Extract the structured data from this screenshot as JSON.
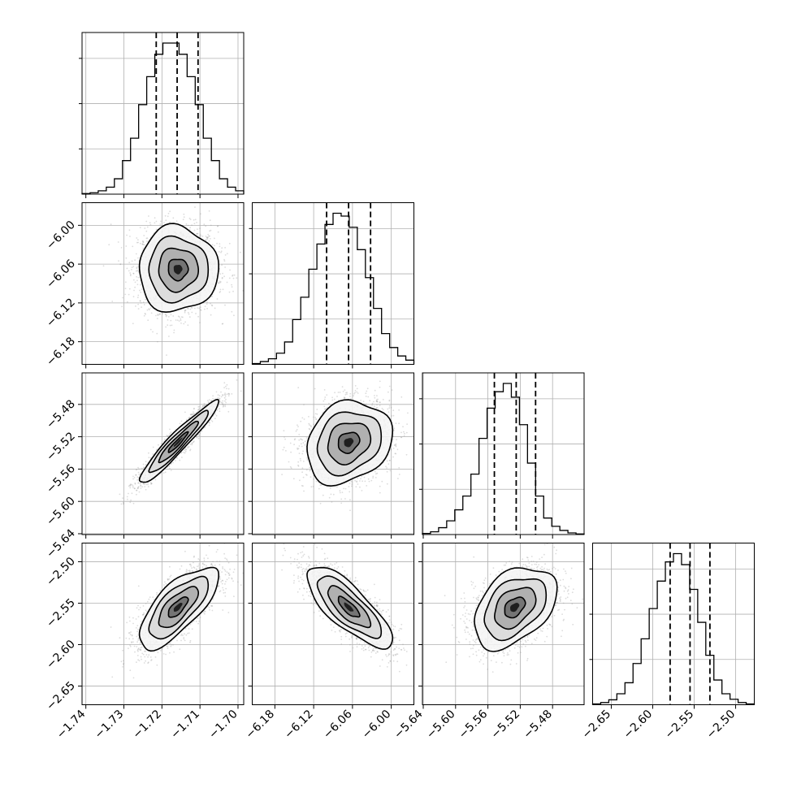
{
  "chart_data": {
    "type": "corner",
    "parameters": [
      {
        "ticks": [
          "−1.74",
          "−1.73",
          "−1.72",
          "−1.71",
          "−1.70"
        ],
        "tick_values": [
          -1.74,
          -1.73,
          -1.72,
          -1.71,
          -1.7
        ],
        "range": [
          -1.741,
          -1.6985
        ],
        "hist": [
          0.2,
          0.5,
          1.2,
          2.5,
          5.5,
          12,
          20,
          32,
          42,
          50,
          54,
          54,
          50,
          42,
          32,
          20,
          12,
          5.5,
          2.5,
          1.2
        ],
        "quantiles": [
          -1.7215,
          -1.716,
          -1.7105
        ]
      },
      {
        "ticks": [
          "−6.18",
          "−6.12",
          "−6.06",
          "−6.00"
        ],
        "tick_values": [
          -6.18,
          -6.12,
          -6.06,
          -6.0
        ],
        "range": [
          -6.215,
          -5.965
        ],
        "hist": [
          0.3,
          1,
          2,
          4,
          8,
          16,
          24,
          34,
          43,
          50,
          54,
          53,
          49,
          41,
          31,
          20,
          11,
          6,
          3,
          1.5
        ],
        "quantiles": [
          -6.1,
          -6.066,
          -6.032
        ]
      },
      {
        "ticks": [
          "−5.64",
          "−5.60",
          "−5.56",
          "−5.52",
          "−5.48"
        ],
        "tick_values": [
          -5.64,
          -5.6,
          -5.56,
          -5.52,
          -5.48
        ],
        "range": [
          -5.641,
          -5.441
        ],
        "hist": [
          0.4,
          1,
          2.5,
          5,
          9,
          14,
          22,
          35,
          46,
          52,
          55,
          50,
          40,
          26,
          14,
          6,
          3,
          1.5,
          0.6,
          0.2
        ],
        "quantiles": [
          -5.552,
          -5.525,
          -5.501
        ]
      },
      {
        "ticks": [
          "−2.65",
          "−2.60",
          "−2.55",
          "−2.50"
        ],
        "tick_values": [
          -2.65,
          -2.6,
          -2.55,
          -2.5
        ],
        "range": [
          -2.6725,
          -2.4775
        ],
        "hist": [
          0.3,
          0.8,
          1.8,
          4,
          8,
          15,
          24,
          35,
          45,
          52,
          55,
          51,
          42,
          30,
          18,
          9,
          4,
          2,
          0.8,
          0.3
        ],
        "quantiles": [
          -2.579,
          -2.555,
          -2.531
        ]
      }
    ],
    "pairs": [
      {
        "row": 1,
        "col": 0,
        "mean": [
          -1.7158,
          -6.068
        ],
        "sd": [
          0.0052,
          0.033
        ],
        "corr": 0.0
      },
      {
        "row": 2,
        "col": 0,
        "mean": [
          -1.7158,
          -5.527
        ],
        "sd": [
          0.0052,
          0.0255
        ],
        "corr": 0.95
      },
      {
        "row": 2,
        "col": 1,
        "mean": [
          -6.066,
          -5.527
        ],
        "sd": [
          0.033,
          0.0255
        ],
        "corr": 0.2
      },
      {
        "row": 3,
        "col": 0,
        "mean": [
          -1.7158,
          -2.555
        ],
        "sd": [
          0.0052,
          0.0245
        ],
        "corr": 0.72
      },
      {
        "row": 3,
        "col": 1,
        "mean": [
          -6.066,
          -2.555
        ],
        "sd": [
          0.033,
          0.0245
        ],
        "corr": -0.78
      },
      {
        "row": 3,
        "col": 2,
        "mean": [
          -5.527,
          -2.555
        ],
        "sd": [
          0.0255,
          0.0245
        ],
        "corr": 0.4
      }
    ],
    "contour_levels_sigma": [
      0.5,
      1.0,
      1.5,
      2.0
    ],
    "colors": {
      "hist": "#000000",
      "points": "#9a9a9a",
      "grid": "#b0b0b0"
    },
    "grid": true,
    "title": "",
    "xlabel": "",
    "ylabel": ""
  }
}
